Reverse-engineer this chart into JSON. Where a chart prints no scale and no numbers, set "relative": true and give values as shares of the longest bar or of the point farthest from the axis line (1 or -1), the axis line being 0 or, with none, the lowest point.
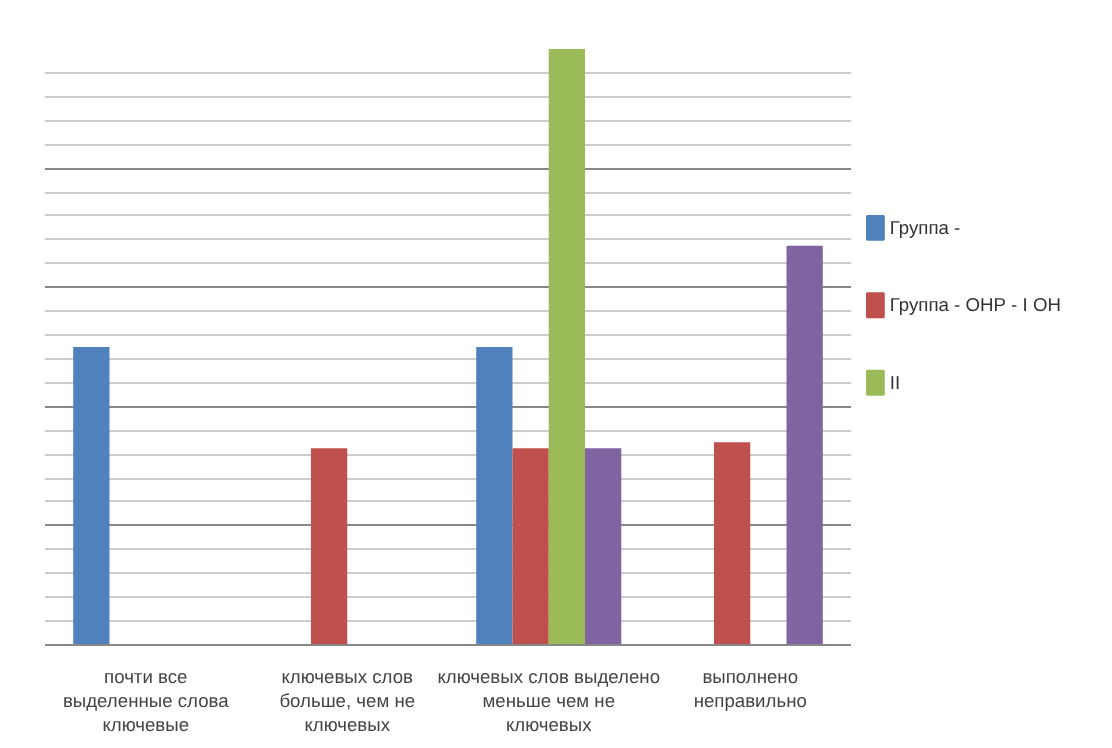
{
  "chart_data": {
    "type": "bar",
    "relative": true,
    "grid": "y",
    "legend": "right",
    "categories": [
      "почти все\nвыделенные слова\nключевые",
      "ключевых слов\nбольше, чем не\nключевых",
      "ключевых слов выделено\nменьше чем не\nключевых",
      "выполнено\nнеправильно"
    ],
    "series": [
      {
        "name": "Группа -",
        "color": "#4f81bd",
        "values": [
          0.5,
          null,
          0.5,
          null
        ]
      },
      {
        "name": "Группа - ОНР - I ОН",
        "color": "#c0504d",
        "values": [
          null,
          0.33,
          0.33,
          0.34
        ]
      },
      {
        "name": "II",
        "color": "#9bbb59",
        "values": [
          null,
          null,
          1,
          null
        ]
      },
      {
        "color": "#8064a2",
        "values": [
          null,
          null,
          0.33,
          0.67
        ]
      }
    ]
  }
}
